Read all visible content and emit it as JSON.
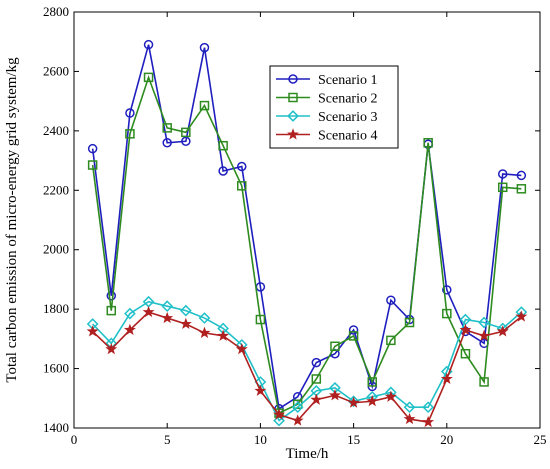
{
  "chart_data": {
    "type": "line",
    "title": "",
    "xlabel": "Time/h",
    "ylabel": "Total carbon emission of micro-energy grid system/kg",
    "xlim": [
      0,
      25
    ],
    "ylim": [
      1400,
      2800
    ],
    "xticks": [
      0,
      5,
      10,
      15,
      20,
      25
    ],
    "yticks": [
      1400,
      1600,
      1800,
      2000,
      2200,
      2400,
      2600,
      2800
    ],
    "x": [
      1,
      2,
      3,
      4,
      5,
      6,
      7,
      8,
      9,
      10,
      11,
      12,
      13,
      14,
      15,
      16,
      17,
      18,
      19,
      20,
      21,
      22,
      23,
      24
    ],
    "grid": false,
    "legend_position": "top-right",
    "series": [
      {
        "name": "Scenario 1",
        "color": "#1f1fbf",
        "marker": "circle",
        "values": [
          2340,
          1845,
          2460,
          2690,
          2360,
          2365,
          2680,
          2265,
          2280,
          1875,
          1465,
          1505,
          1620,
          1650,
          1730,
          1540,
          1830,
          1765,
          2355,
          1865,
          1725,
          1685,
          2255,
          2250
        ]
      },
      {
        "name": "Scenario 2",
        "color": "#2e8b1f",
        "marker": "square",
        "values": [
          2285,
          1795,
          2390,
          2580,
          2410,
          2395,
          2485,
          2350,
          2215,
          1765,
          1450,
          1480,
          1565,
          1675,
          1710,
          1555,
          1695,
          1755,
          2360,
          1785,
          1650,
          1555,
          2210,
          2205
        ]
      },
      {
        "name": "Scenario 3",
        "color": "#20c0c8",
        "marker": "diamond",
        "values": [
          1750,
          1685,
          1785,
          1825,
          1810,
          1795,
          1770,
          1735,
          1680,
          1555,
          1425,
          1470,
          1525,
          1535,
          1490,
          1505,
          1520,
          1470,
          1470,
          1590,
          1765,
          1755,
          1735,
          1790
        ]
      },
      {
        "name": "Scenario 4",
        "color": "#b02020",
        "marker": "star",
        "values": [
          1725,
          1665,
          1730,
          1790,
          1770,
          1750,
          1720,
          1710,
          1665,
          1525,
          1445,
          1425,
          1495,
          1510,
          1485,
          1490,
          1505,
          1430,
          1420,
          1565,
          1730,
          1710,
          1725,
          1775
        ]
      }
    ]
  }
}
